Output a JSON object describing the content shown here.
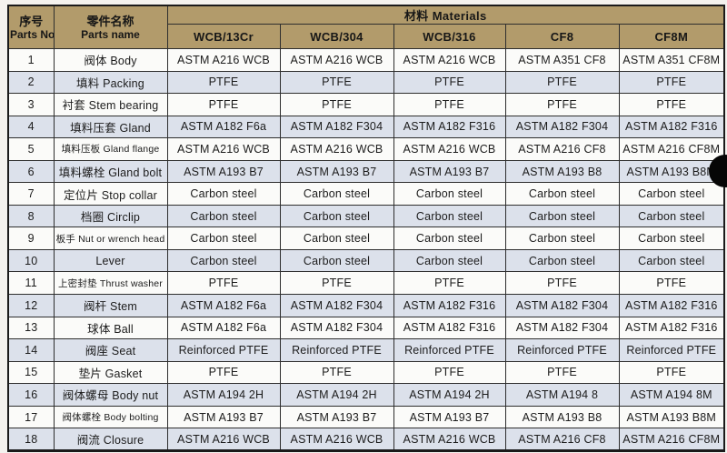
{
  "colors": {
    "header_bg": "#b29b6b",
    "row_bg": "#fbfbf9",
    "row_alt_bg": "#dce1eb",
    "border": "#2e2e2e",
    "text": "#1c1c1c",
    "artifact_dot": "#060606"
  },
  "table": {
    "header": {
      "parts_no_zh": "序号",
      "parts_no_en": "Parts No.",
      "parts_name_zh": "零件名称",
      "parts_name_en": "Parts name",
      "materials_label": "材料 Materials",
      "material_columns": [
        "WCB/13Cr",
        "WCB/304",
        "WCB/316",
        "CF8",
        "CF8M"
      ]
    },
    "rows": [
      {
        "no": "1",
        "name": "阀体 Body",
        "materials": [
          "ASTM A216 WCB",
          "ASTM A216 WCB",
          "ASTM A216 WCB",
          "ASTM A351 CF8",
          "ASTM A351 CF8M"
        ]
      },
      {
        "no": "2",
        "name": "填料 Packing",
        "materials": [
          "PTFE",
          "PTFE",
          "PTFE",
          "PTFE",
          "PTFE"
        ]
      },
      {
        "no": "3",
        "name": "衬套 Stem bearing",
        "materials": [
          "PTFE",
          "PTFE",
          "PTFE",
          "PTFE",
          "PTFE"
        ]
      },
      {
        "no": "4",
        "name": "填料压套 Gland",
        "materials": [
          "ASTM A182 F6a",
          "ASTM A182 F304",
          "ASTM A182 F316",
          "ASTM A182 F304",
          "ASTM A182 F316"
        ]
      },
      {
        "no": "5",
        "name": "填料压板 Gland flange",
        "materials": [
          "ASTM A216 WCB",
          "ASTM A216 WCB",
          "ASTM A216 WCB",
          "ASTM A216 CF8",
          "ASTM A216 CF8M"
        ]
      },
      {
        "no": "6",
        "name": "填料螺栓 Gland bolt",
        "materials": [
          "ASTM A193 B7",
          "ASTM A193 B7",
          "ASTM A193 B7",
          "ASTM A193 B8",
          "ASTM A193 B8M"
        ]
      },
      {
        "no": "7",
        "name": "定位片 Stop collar",
        "materials": [
          "Carbon steel",
          "Carbon steel",
          "Carbon steel",
          "Carbon steel",
          "Carbon steel"
        ]
      },
      {
        "no": "8",
        "name": "档圈 Circlip",
        "materials": [
          "Carbon steel",
          "Carbon steel",
          "Carbon steel",
          "Carbon steel",
          "Carbon steel"
        ]
      },
      {
        "no": "9",
        "name": "板手 Nut or wrench head",
        "materials": [
          "Carbon steel",
          "Carbon steel",
          "Carbon steel",
          "Carbon steel",
          "Carbon steel"
        ]
      },
      {
        "no": "10",
        "name": "Lever",
        "materials": [
          "Carbon steel",
          "Carbon steel",
          "Carbon steel",
          "Carbon steel",
          "Carbon steel"
        ]
      },
      {
        "no": "11",
        "name": "上密封垫 Thrust washer",
        "materials": [
          "PTFE",
          "PTFE",
          "PTFE",
          "PTFE",
          "PTFE"
        ]
      },
      {
        "no": "12",
        "name": "阀杆 Stem",
        "materials": [
          "ASTM A182 F6a",
          "ASTM A182 F304",
          "ASTM A182 F316",
          "ASTM A182 F304",
          "ASTM A182 F316"
        ]
      },
      {
        "no": "13",
        "name": "球体 Ball",
        "materials": [
          "ASTM A182 F6a",
          "ASTM A182 F304",
          "ASTM A182 F316",
          "ASTM A182 F304",
          "ASTM A182 F316"
        ]
      },
      {
        "no": "14",
        "name": "阀座 Seat",
        "materials": [
          "Reinforced PTFE",
          "Reinforced PTFE",
          "Reinforced PTFE",
          "Reinforced PTFE",
          "Reinforced PTFE"
        ]
      },
      {
        "no": "15",
        "name": "垫片 Gasket",
        "materials": [
          "PTFE",
          "PTFE",
          "PTFE",
          "PTFE",
          "PTFE"
        ]
      },
      {
        "no": "16",
        "name": "阀体螺母 Body nut",
        "materials": [
          "ASTM A194 2H",
          "ASTM A194 2H",
          "ASTM A194 2H",
          "ASTM A194 8",
          "ASTM A194 8M"
        ]
      },
      {
        "no": "17",
        "name": "阀体螺栓 Body bolting",
        "materials": [
          "ASTM A193 B7",
          "ASTM A193 B7",
          "ASTM A193 B7",
          "ASTM A193 B8",
          "ASTM A193 B8M"
        ]
      },
      {
        "no": "18",
        "name": "阀流 Closure",
        "materials": [
          "ASTM A216 WCB",
          "ASTM A216 WCB",
          "ASTM A216 WCB",
          "ASTM A216 CF8",
          "ASTM A216 CF8M"
        ]
      }
    ]
  }
}
